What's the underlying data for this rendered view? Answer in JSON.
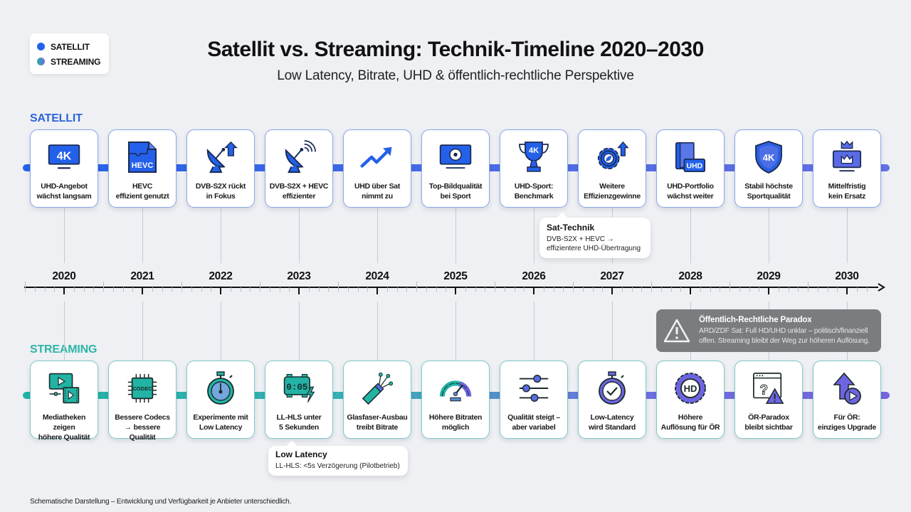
{
  "legend": {
    "items": [
      {
        "label": "SATELLIT",
        "color": "#2461ea"
      },
      {
        "label": "STREAMING",
        "color": "#1fb3a3"
      }
    ]
  },
  "header": {
    "title": "Satellit vs. Streaming: Technik-Timeline 2020–2030",
    "subtitle": "Low Latency, Bitrate, UHD & öffentlich-rechtliche Perspektive"
  },
  "lanes": {
    "satellit_label": "SATELLIT",
    "streaming_label": "STREAMING"
  },
  "colors": {
    "satellit": "#2461ea",
    "satellit_end": "#6470e4",
    "streaming": "#22b3a4",
    "streaming_end": "#7566df",
    "paradox_bg": "#7a7c80",
    "axis": "#111111"
  },
  "timeline": {
    "years": [
      "2020",
      "2021",
      "2022",
      "2023",
      "2024",
      "2025",
      "2026",
      "2027",
      "2028",
      "2029",
      "2030"
    ]
  },
  "satellit": [
    {
      "year": "2020",
      "icon": "4k-monitor-icon",
      "line1": "UHD-Angebot",
      "line2": "wächst langsam"
    },
    {
      "year": "2021",
      "icon": "hevc-puzzle-file-icon",
      "line1": "HEVC",
      "line2": "effizient genutzt"
    },
    {
      "year": "2022",
      "icon": "satellite-dish-arrow-up-icon",
      "line1": "DVB-S2X rückt",
      "line2": "in Fokus"
    },
    {
      "year": "2023",
      "icon": "satellite-dish-signal-icon",
      "line1": "DVB-S2X + HEVC",
      "line2": "effizienter"
    },
    {
      "year": "2024",
      "icon": "trend-up-arrow-icon",
      "line1": "UHD über Sat",
      "line2": "nimmt zu"
    },
    {
      "year": "2025",
      "icon": "tv-football-icon",
      "line1": "Top-Bildqualität",
      "line2": "bei Sport"
    },
    {
      "year": "2026",
      "icon": "4k-trophy-icon",
      "line1": "UHD-Sport:",
      "line2": "Benchmark"
    },
    {
      "year": "2027",
      "icon": "gear-leaf-arrow-icon",
      "line1": "Weitere",
      "line2": "Effizienzgewinne"
    },
    {
      "year": "2028",
      "icon": "uhd-book-stack-icon",
      "line1": "UHD-Portfolio",
      "line2": "wächst weiter"
    },
    {
      "year": "2029",
      "icon": "4k-shield-icon",
      "line1": "Stabil höchste",
      "line2": "Sportqualität"
    },
    {
      "year": "2030",
      "icon": "crown-monitor-icon",
      "line1": "Mittelfristig",
      "line2": "kein Ersatz"
    }
  ],
  "streaming": [
    {
      "year": "2020",
      "icon": "media-library-play-icon",
      "line1": "Mediatheken zeigen",
      "line2": "höhere Qualität"
    },
    {
      "year": "2021",
      "icon": "codec-chip-icon",
      "line1": "Bessere Codecs",
      "line2": "→ bessere Qualität"
    },
    {
      "year": "2022",
      "icon": "stopwatch-icon",
      "line1": "Experimente mit",
      "line2": "Low Latency"
    },
    {
      "year": "2023",
      "icon": "digital-clock-lightning-icon",
      "line1": "LL-HLS unter",
      "line2": "5 Sekunden"
    },
    {
      "year": "2024",
      "icon": "fiber-optic-cable-icon",
      "line1": "Glasfaser-Ausbau",
      "line2": "treibt Bitrate"
    },
    {
      "year": "2025",
      "icon": "speedometer-gauge-icon",
      "line1": "Höhere Bitraten",
      "line2": "möglich"
    },
    {
      "year": "2026",
      "icon": "sliders-adjust-icon",
      "line1": "Qualität steigt –",
      "line2": "aber variabel"
    },
    {
      "year": "2027",
      "icon": "stopwatch-check-icon",
      "line1": "Low-Latency",
      "line2": "wird Standard"
    },
    {
      "year": "2028",
      "icon": "hd-badge-icon",
      "line1": "Höhere",
      "line2": "Auflösung für ÖR"
    },
    {
      "year": "2029",
      "icon": "browser-question-warning-icon",
      "line1": "ÖR-Paradox",
      "line2": "bleibt sichtbar"
    },
    {
      "year": "2030",
      "icon": "upgrade-arrow-play-icon",
      "line1": "Für ÖR:",
      "line2": "einziges Upgrade"
    }
  ],
  "callouts": {
    "sat_technik": {
      "title": "Sat-Technik",
      "line1": "DVB-S2X + HEVC →",
      "line2": "effizientere UHD-Übertragung"
    },
    "low_latency": {
      "title": "Low Latency",
      "line1": "LL-HLS: <5s Verzögerung (Pilotbetrieb)"
    },
    "paradox": {
      "title": "Öffentlich-Rechtliche Paradox",
      "line1": "ARD/ZDF Sat: Full HD/UHD unklar – politisch/finanziell",
      "line2": "offen. Streaming bleibt der Weg zur höheren Auflösung."
    }
  },
  "footnote": "Schematische Darstellung – Entwicklung und Verfügbarkeit je Anbieter unterschiedlich."
}
